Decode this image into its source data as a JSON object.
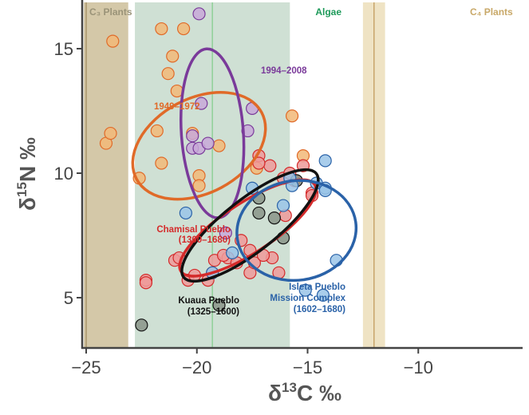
{
  "chart_data": {
    "type": "scatter",
    "title": "",
    "xlabel": "δ13C ‰",
    "ylabel": "δ15N ‰",
    "xlim": [
      -25.2,
      -9.5
    ],
    "ylim": [
      3.0,
      17.0
    ],
    "xticks": [
      -25,
      -20,
      -15,
      -10
    ],
    "xtick_labels": [
      "−25",
      "−20",
      "−15",
      "−10"
    ],
    "yticks": [
      5,
      10,
      15
    ],
    "ytick_labels": [
      "5",
      "10",
      "15"
    ],
    "grid": false,
    "legend": "none (inline group labels)",
    "bands": [
      {
        "name": "C3 Plants",
        "label": "C₃ Plants",
        "x_range": [
          -25.2,
          -23.1
        ],
        "center": -25.0,
        "fill": "#d4c8a8",
        "line": "#a8946a",
        "text_color": "#9a9378"
      },
      {
        "name": "Algae",
        "label": "Algae",
        "x_range": [
          -22.8,
          -15.8
        ],
        "center": -19.3,
        "fill": "#cfe0d4",
        "line": "#8fd098",
        "text_color": "#1e9a5a"
      },
      {
        "name": "C4 Plants",
        "label": "C₄ Plants",
        "x_range": [
          -12.5,
          -11.5
        ],
        "center": -12.0,
        "fill": "#efe3c4",
        "line": "#c8a56a",
        "text_color": "#c8a868"
      }
    ],
    "series": [
      {
        "name": "1949–1972",
        "label": "1949–1972",
        "color": "#e06a28",
        "fill": "#f2b878",
        "points": [
          [
            -23.8,
            15.3
          ],
          [
            -24.1,
            11.2
          ],
          [
            -23.9,
            11.6
          ],
          [
            -21.6,
            15.8
          ],
          [
            -20.6,
            15.8
          ],
          [
            -21.1,
            14.7
          ],
          [
            -21.3,
            14.0
          ],
          [
            -20.9,
            13.3
          ],
          [
            -21.8,
            11.7
          ],
          [
            -22.6,
            9.8
          ],
          [
            -21.6,
            10.4
          ],
          [
            -20.2,
            11.6
          ],
          [
            -19.9,
            9.9
          ],
          [
            -19.9,
            9.5
          ],
          [
            -19.0,
            11.1
          ],
          [
            -17.3,
            10.2
          ],
          [
            -15.7,
            12.3
          ],
          [
            -15.2,
            10.7
          ]
        ],
        "ellipse": {
          "cx": -19.9,
          "cy": 11.1,
          "rx": 3.2,
          "ry": 1.9,
          "angle_deg": -28
        }
      },
      {
        "name": "1994–2008",
        "label": "1994–2008",
        "color": "#7a3a9a",
        "fill": "#c8a8d8",
        "points": [
          [
            -19.9,
            16.4
          ],
          [
            -19.8,
            12.8
          ],
          [
            -17.5,
            12.6
          ],
          [
            -20.2,
            11.5
          ],
          [
            -20.2,
            11.0
          ],
          [
            -19.9,
            11.0
          ],
          [
            -19.5,
            11.2
          ],
          [
            -17.7,
            11.7
          ],
          [
            -18.7,
            7.6
          ],
          [
            -15.8,
            9.8
          ]
        ],
        "ellipse": {
          "cx": -19.3,
          "cy": 11.6,
          "rx": 1.4,
          "ry": 3.4,
          "angle_deg": -4
        }
      },
      {
        "name": "Chamisal Pueblo (1300–1680)",
        "label": "Chamisal Pueblo\n(1300–1680)",
        "color": "#d42a2a",
        "fill": "#ee9a9a",
        "points": [
          [
            -22.3,
            5.7
          ],
          [
            -22.3,
            5.6
          ],
          [
            -21.0,
            6.5
          ],
          [
            -20.8,
            6.6
          ],
          [
            -20.4,
            5.7
          ],
          [
            -20.1,
            5.9
          ],
          [
            -19.5,
            5.7
          ],
          [
            -19.3,
            6.0
          ],
          [
            -19.2,
            6.5
          ],
          [
            -18.6,
            6.6
          ],
          [
            -18.2,
            6.4
          ],
          [
            -18.0,
            7.3
          ],
          [
            -17.6,
            6.9
          ],
          [
            -17.6,
            6.0
          ],
          [
            -17.4,
            6.4
          ],
          [
            -16.6,
            6.6
          ],
          [
            -16.3,
            6.0
          ],
          [
            -18.8,
            6.7
          ],
          [
            -17.0,
            6.7
          ],
          [
            -17.2,
            10.7
          ],
          [
            -16.7,
            10.3
          ],
          [
            -16.1,
            9.8
          ],
          [
            -15.2,
            10.3
          ],
          [
            -14.8,
            9.2
          ],
          [
            -14.8,
            9.1
          ],
          [
            -15.6,
            9.7
          ],
          [
            -17.2,
            10.4
          ],
          [
            -16.0,
            8.3
          ],
          [
            -15.8,
            10.0
          ]
        ],
        "ellipse": {
          "cx": -17.7,
          "cy": 7.8,
          "rx": 3.6,
          "ry": 1.0,
          "angle_deg": -33
        }
      },
      {
        "name": "Kuaua Pueblo (1325–1600)",
        "label": "Kuaua Pueblo\n(1325–1600)",
        "color": "#111111",
        "fill": "#8a9488",
        "points": [
          [
            -22.5,
            3.9
          ],
          [
            -19.0,
            4.7
          ],
          [
            -17.2,
            9.0
          ],
          [
            -17.2,
            8.4
          ],
          [
            -16.5,
            8.2
          ],
          [
            -16.1,
            7.4
          ],
          [
            -15.5,
            9.7
          ]
        ],
        "ellipse": {
          "cx": -17.6,
          "cy": 7.9,
          "rx": 3.8,
          "ry": 1.05,
          "angle_deg": -38
        }
      },
      {
        "name": "Isleta Pueblo Mission Complex (1602–1680)",
        "label": "Isleta Pueblo\nMission Complex\n(1602–1680)",
        "color": "#2a62a8",
        "fill": "#9ac4e8",
        "points": [
          [
            -20.5,
            8.4
          ],
          [
            -18.4,
            6.8
          ],
          [
            -17.5,
            9.4
          ],
          [
            -16.1,
            8.7
          ],
          [
            -15.8,
            9.8
          ],
          [
            -15.7,
            9.5
          ],
          [
            -15.1,
            5.3
          ],
          [
            -14.6,
            9.6
          ],
          [
            -14.2,
            10.5
          ],
          [
            -14.2,
            9.4
          ],
          [
            -14.2,
            9.3
          ],
          [
            -13.7,
            6.5
          ],
          [
            -14.3,
            5.1
          ],
          [
            -19.3,
            6.0
          ]
        ],
        "ellipse": {
          "cx": -15.5,
          "cy": 7.7,
          "rx": 2.7,
          "ry": 2.0,
          "angle_deg": -8
        }
      }
    ]
  }
}
